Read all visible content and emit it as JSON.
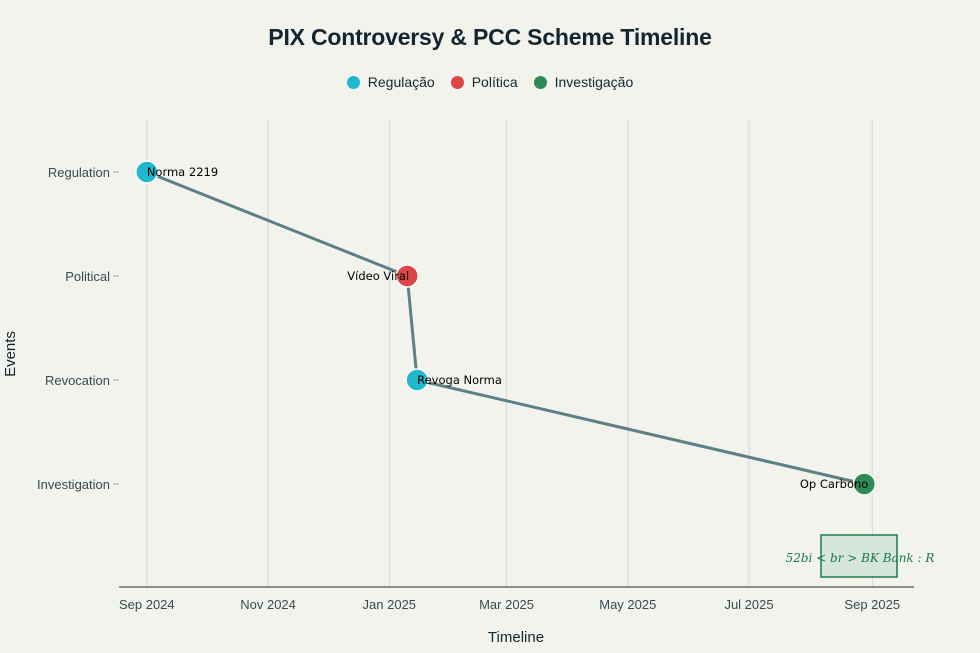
{
  "chart_data": {
    "type": "scatter",
    "title": "PIX Controversy & PCC Scheme Timeline",
    "xlabel": "Timeline",
    "ylabel": "Events",
    "x_axis_type": "date",
    "xlim": [
      "2024-08-18",
      "2025-09-22"
    ],
    "x_ticks": [
      {
        "date": "2024-09-01",
        "label": "Sep 2024"
      },
      {
        "date": "2024-11-01",
        "label": "Nov 2024"
      },
      {
        "date": "2025-01-01",
        "label": "Jan 2025"
      },
      {
        "date": "2025-03-01",
        "label": "Mar 2025"
      },
      {
        "date": "2025-05-01",
        "label": "May 2025"
      },
      {
        "date": "2025-07-01",
        "label": "Jul 2025"
      },
      {
        "date": "2025-09-01",
        "label": "Sep 2025"
      }
    ],
    "categories": [
      "Regulation",
      "Political",
      "Revocation",
      "Investigation"
    ],
    "legend": [
      {
        "name": "Regulação",
        "color": "#1fb8cd"
      },
      {
        "name": "Política",
        "color": "#db4545"
      },
      {
        "name": "Investigação",
        "color": "#2e8b57"
      }
    ],
    "legend_position": "top-center",
    "points": [
      {
        "date": "2024-09-01",
        "category": "Regulation",
        "label": "Norma 2219",
        "color": "#1fb8cd"
      },
      {
        "date": "2025-01-10",
        "category": "Political",
        "label": "Vídeo Viral",
        "color": "#db4545"
      },
      {
        "date": "2025-01-15",
        "category": "Revocation",
        "label": "Revoga Norma",
        "color": "#1fb8cd"
      },
      {
        "date": "2025-08-28",
        "category": "Investigation",
        "label": "Op Carbono",
        "color": "#2e8b57"
      }
    ],
    "line_color": "#5d7f86",
    "grid": true,
    "annotation": {
      "text": "52bi < br > BK Bank : R",
      "color": "#1a7a48"
    }
  }
}
